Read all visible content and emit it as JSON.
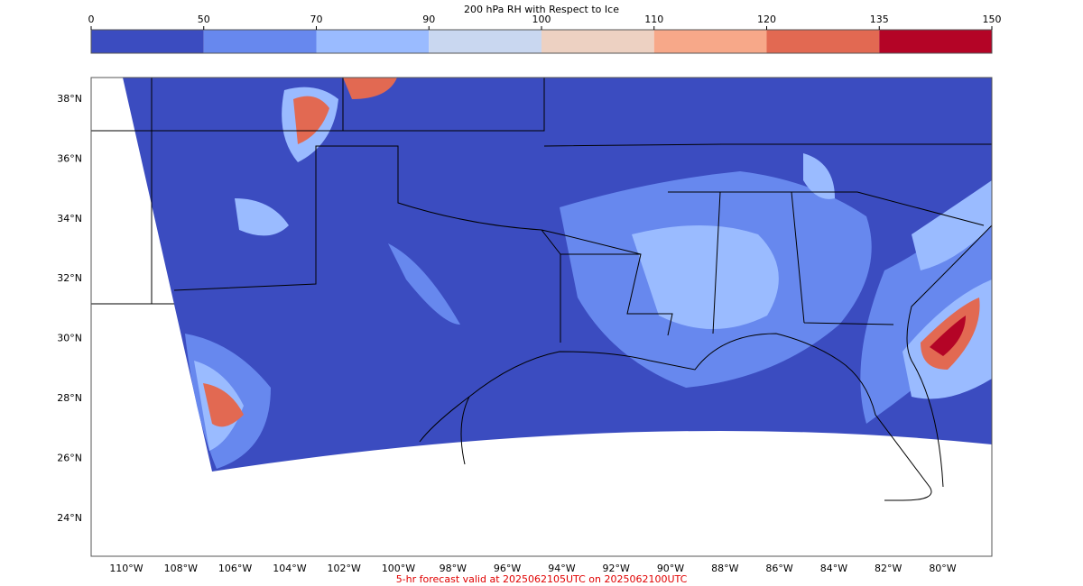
{
  "colorbar": {
    "title": "200 hPa RH with Respect to Ice",
    "ticks": [
      0,
      50,
      70,
      90,
      100,
      110,
      120,
      135,
      150
    ],
    "colors": [
      "#3b4cc0",
      "#6788ee",
      "#9abbff",
      "#c9d7f0",
      "#edd1c2",
      "#f7a889",
      "#e26952",
      "#b40426"
    ]
  },
  "map": {
    "lat_labels": [
      "38°N",
      "36°N",
      "34°N",
      "32°N",
      "30°N",
      "28°N",
      "26°N",
      "24°N"
    ],
    "lon_labels": [
      "110°W",
      "108°W",
      "106°W",
      "104°W",
      "102°W",
      "100°W",
      "98°W",
      "96°W",
      "94°W",
      "92°W",
      "90°W",
      "88°W",
      "86°W",
      "84°W",
      "82°W",
      "80°W"
    ]
  },
  "footer": "5-hr forecast valid at 2025062105UTC on 2025062100UTC"
}
